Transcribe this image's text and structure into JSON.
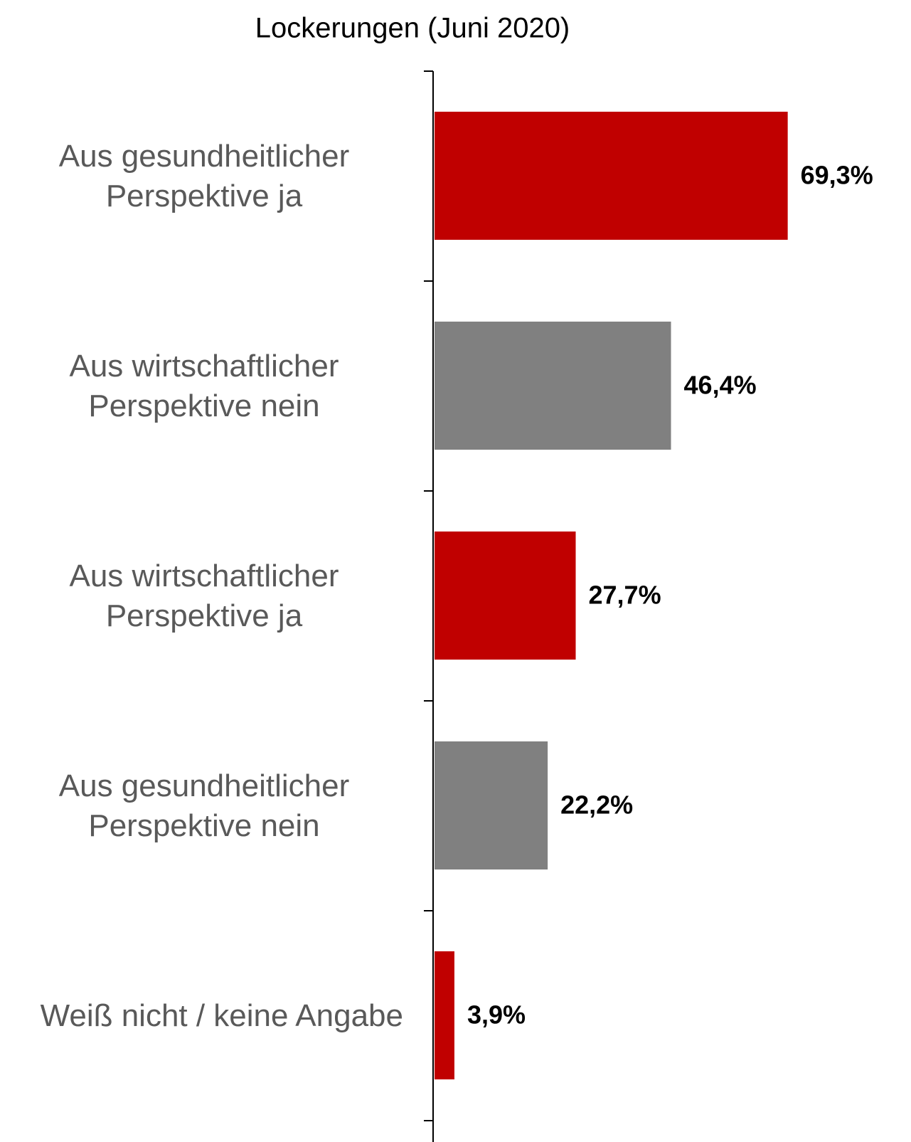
{
  "chart_data": {
    "type": "barh",
    "title": "Lockerungen (Juni 2020)",
    "categories": [
      "Aus gesundheitlicher Perspektive ja",
      "Aus wirtschaftlicher Perspektive nein",
      "Aus wirtschaftlicher Perspektive ja",
      "Aus gesundheitlicher Perspektive nein",
      "Weiß nicht / keine Angabe"
    ],
    "values": [
      69.3,
      46.4,
      27.7,
      22.2,
      3.9
    ],
    "value_labels": [
      "69,3%",
      "46,4%",
      "27,7%",
      "22,2%",
      "3,9%"
    ],
    "colors": [
      "#c00000",
      "#808080",
      "#c00000",
      "#808080",
      "#c00000"
    ],
    "xlim": [
      0,
      90
    ]
  }
}
